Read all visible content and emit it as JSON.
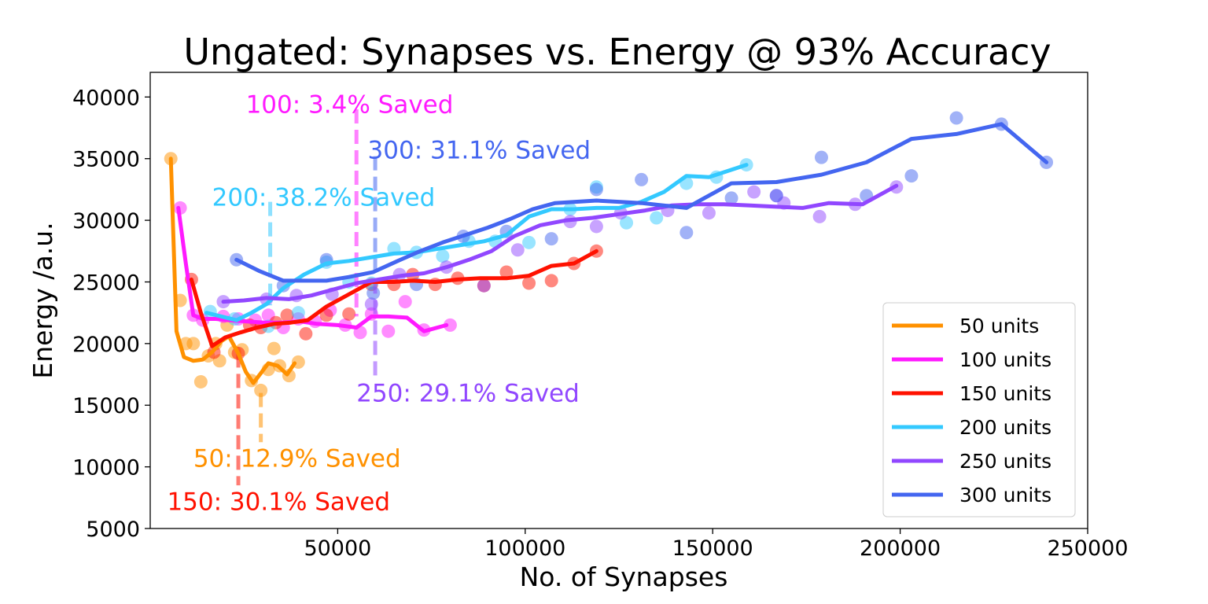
{
  "chart_data": {
    "type": "line",
    "title": "Ungated: Synapses vs. Energy @ 93% Accuracy",
    "xlabel": "No. of Synapses",
    "ylabel": "Energy /a.u.",
    "xlim": [
      0,
      250000
    ],
    "ylim": [
      5000,
      42000
    ],
    "xticks": [
      50000,
      100000,
      150000,
      200000,
      250000
    ],
    "yticks": [
      5000,
      10000,
      15000,
      20000,
      25000,
      30000,
      35000,
      40000
    ],
    "grid": false,
    "legend_position": "bottom-right",
    "series": [
      {
        "name": "50 units",
        "color": "#ff9100",
        "line": [
          [
            5500,
            35000
          ],
          [
            7000,
            21000
          ],
          [
            9000,
            18900
          ],
          [
            11500,
            18600
          ],
          [
            14000,
            18700
          ],
          [
            16500,
            19300
          ],
          [
            19000,
            20200
          ],
          [
            21000,
            20600
          ],
          [
            23500,
            19200
          ],
          [
            25500,
            17700
          ],
          [
            27500,
            16800
          ],
          [
            29500,
            17600
          ],
          [
            31500,
            18400
          ],
          [
            34000,
            18200
          ],
          [
            36500,
            17500
          ],
          [
            38500,
            18400
          ]
        ],
        "points": [
          [
            5500,
            35000
          ],
          [
            8000,
            23500
          ],
          [
            9500,
            20000
          ],
          [
            11500,
            20000
          ],
          [
            13500,
            16900
          ],
          [
            15500,
            19000
          ],
          [
            17500,
            20000
          ],
          [
            18500,
            18600
          ],
          [
            20500,
            21500
          ],
          [
            22500,
            19300
          ],
          [
            24500,
            19500
          ],
          [
            27000,
            17000
          ],
          [
            29500,
            16200
          ],
          [
            31500,
            17900
          ],
          [
            33000,
            19600
          ],
          [
            34500,
            18200
          ],
          [
            37000,
            17400
          ],
          [
            39500,
            18500
          ]
        ]
      },
      {
        "name": "100 units",
        "color": "#ff1aff",
        "line": [
          [
            7500,
            31000
          ],
          [
            9500,
            26500
          ],
          [
            11500,
            22300
          ],
          [
            14000,
            22000
          ],
          [
            17500,
            22000
          ],
          [
            21000,
            21900
          ],
          [
            25500,
            21800
          ],
          [
            30500,
            21700
          ],
          [
            35000,
            21700
          ],
          [
            40000,
            21800
          ],
          [
            44500,
            21600
          ],
          [
            50000,
            21500
          ],
          [
            55000,
            21300
          ],
          [
            59000,
            22200
          ],
          [
            63500,
            22200
          ],
          [
            68500,
            22100
          ],
          [
            73000,
            21000
          ],
          [
            79000,
            21500
          ]
        ],
        "points": [
          [
            8000,
            31000
          ],
          [
            11500,
            22300
          ],
          [
            14000,
            21900
          ],
          [
            19500,
            22200
          ],
          [
            23500,
            22000
          ],
          [
            28000,
            21900
          ],
          [
            31500,
            22300
          ],
          [
            35500,
            21300
          ],
          [
            39500,
            22000
          ],
          [
            44000,
            21800
          ],
          [
            48000,
            22700
          ],
          [
            52000,
            21500
          ],
          [
            56000,
            20900
          ],
          [
            59000,
            22400
          ],
          [
            63500,
            21000
          ],
          [
            68000,
            23400
          ],
          [
            73000,
            21100
          ],
          [
            80000,
            21500
          ]
        ]
      },
      {
        "name": "150 units",
        "color": "#ff1100",
        "line": [
          [
            11000,
            25200
          ],
          [
            13500,
            22500
          ],
          [
            16500,
            19800
          ],
          [
            20000,
            20500
          ],
          [
            24000,
            20900
          ],
          [
            28500,
            21300
          ],
          [
            33000,
            21600
          ],
          [
            37500,
            21700
          ],
          [
            42000,
            21900
          ],
          [
            47000,
            23000
          ],
          [
            53000,
            24000
          ],
          [
            59000,
            25000
          ],
          [
            65000,
            25000
          ],
          [
            70000,
            25100
          ],
          [
            76000,
            25000
          ],
          [
            82000,
            25200
          ],
          [
            88000,
            25300
          ],
          [
            95000,
            25300
          ],
          [
            101000,
            25500
          ],
          [
            107000,
            26300
          ],
          [
            113000,
            26500
          ],
          [
            119000,
            27500
          ]
        ],
        "points": [
          [
            11000,
            25200
          ],
          [
            17000,
            19300
          ],
          [
            23500,
            19200
          ],
          [
            26500,
            21500
          ],
          [
            29500,
            21300
          ],
          [
            33500,
            21700
          ],
          [
            36500,
            22300
          ],
          [
            41500,
            20800
          ],
          [
            47000,
            22300
          ],
          [
            53000,
            22400
          ],
          [
            59000,
            24800
          ],
          [
            65000,
            24800
          ],
          [
            70000,
            25600
          ],
          [
            76000,
            24800
          ],
          [
            82000,
            25300
          ],
          [
            89000,
            24700
          ],
          [
            95000,
            25800
          ],
          [
            101000,
            24900
          ],
          [
            107000,
            25100
          ],
          [
            113000,
            26500
          ],
          [
            119000,
            27500
          ]
        ]
      },
      {
        "name": "200 units",
        "color": "#33c9ff",
        "line": [
          [
            15000,
            22500
          ],
          [
            19000,
            22200
          ],
          [
            23000,
            21900
          ],
          [
            27000,
            22500
          ],
          [
            31000,
            23200
          ],
          [
            35500,
            24500
          ],
          [
            41000,
            25600
          ],
          [
            47000,
            26500
          ],
          [
            53000,
            26700
          ],
          [
            59000,
            27000
          ],
          [
            65000,
            27300
          ],
          [
            71000,
            27400
          ],
          [
            77000,
            27700
          ],
          [
            83000,
            28000
          ],
          [
            89000,
            28300
          ],
          [
            95000,
            28800
          ],
          [
            101000,
            30300
          ],
          [
            107000,
            30900
          ],
          [
            113000,
            30900
          ],
          [
            119000,
            31000
          ],
          [
            125000,
            31000
          ],
          [
            131000,
            31500
          ],
          [
            137000,
            32300
          ],
          [
            143000,
            33600
          ],
          [
            149000,
            33500
          ],
          [
            159000,
            34500
          ]
        ],
        "points": [
          [
            16000,
            22600
          ],
          [
            22500,
            22000
          ],
          [
            31500,
            21400
          ],
          [
            39500,
            22500
          ],
          [
            47000,
            26600
          ],
          [
            53000,
            25000
          ],
          [
            59000,
            24900
          ],
          [
            65000,
            27700
          ],
          [
            71000,
            27400
          ],
          [
            78000,
            27100
          ],
          [
            85000,
            28300
          ],
          [
            92000,
            28300
          ],
          [
            101000,
            28200
          ],
          [
            112000,
            30900
          ],
          [
            119000,
            32700
          ],
          [
            127000,
            29800
          ],
          [
            135000,
            30200
          ],
          [
            143000,
            33000
          ],
          [
            151000,
            33500
          ],
          [
            159000,
            34500
          ]
        ]
      },
      {
        "name": "250 units",
        "color": "#9147ff",
        "line": [
          [
            19500,
            23400
          ],
          [
            25000,
            23500
          ],
          [
            31000,
            23700
          ],
          [
            37000,
            23600
          ],
          [
            43000,
            23900
          ],
          [
            49000,
            24400
          ],
          [
            55000,
            24900
          ],
          [
            61000,
            25200
          ],
          [
            67000,
            25500
          ],
          [
            73000,
            25700
          ],
          [
            79000,
            26200
          ],
          [
            85000,
            26800
          ],
          [
            91000,
            27500
          ],
          [
            97000,
            28700
          ],
          [
            104000,
            29600
          ],
          [
            111000,
            30000
          ],
          [
            118000,
            30200
          ],
          [
            125000,
            30500
          ],
          [
            132000,
            30800
          ],
          [
            139000,
            31200
          ],
          [
            146000,
            31300
          ],
          [
            153000,
            31300
          ],
          [
            160000,
            31200
          ],
          [
            167000,
            31100
          ],
          [
            174000,
            31000
          ],
          [
            181000,
            31400
          ],
          [
            190000,
            31300
          ],
          [
            199000,
            32800
          ]
        ],
        "points": [
          [
            19500,
            23400
          ],
          [
            31000,
            23600
          ],
          [
            39000,
            23900
          ],
          [
            48500,
            24000
          ],
          [
            59000,
            23200
          ],
          [
            66500,
            25600
          ],
          [
            79000,
            26200
          ],
          [
            89000,
            24700
          ],
          [
            98000,
            27600
          ],
          [
            112000,
            29900
          ],
          [
            119000,
            29500
          ],
          [
            125500,
            30600
          ],
          [
            138000,
            30800
          ],
          [
            149000,
            30600
          ],
          [
            161000,
            32300
          ],
          [
            167000,
            32000
          ],
          [
            169000,
            31400
          ],
          [
            178500,
            30300
          ],
          [
            188000,
            31300
          ],
          [
            199000,
            32700
          ]
        ]
      },
      {
        "name": "300 units",
        "color": "#4466f0",
        "line": [
          [
            23000,
            26800
          ],
          [
            29000,
            25900
          ],
          [
            35500,
            25100
          ],
          [
            41500,
            25100
          ],
          [
            47000,
            25100
          ],
          [
            53000,
            25400
          ],
          [
            59500,
            25800
          ],
          [
            66000,
            26700
          ],
          [
            72000,
            27500
          ],
          [
            78000,
            28200
          ],
          [
            84000,
            28800
          ],
          [
            90000,
            29400
          ],
          [
            96000,
            30100
          ],
          [
            102000,
            30900
          ],
          [
            108000,
            31400
          ],
          [
            119000,
            31600
          ],
          [
            131000,
            31400
          ],
          [
            143000,
            31000
          ],
          [
            155000,
            33000
          ],
          [
            167000,
            33100
          ],
          [
            179000,
            33700
          ],
          [
            191000,
            34700
          ],
          [
            203000,
            36600
          ],
          [
            215000,
            37000
          ],
          [
            227000,
            37800
          ],
          [
            239000,
            34700
          ]
        ],
        "points": [
          [
            23000,
            26800
          ],
          [
            35500,
            24700
          ],
          [
            47000,
            26800
          ],
          [
            59500,
            24100
          ],
          [
            71000,
            24800
          ],
          [
            83500,
            28700
          ],
          [
            95000,
            29100
          ],
          [
            107000,
            28500
          ],
          [
            119000,
            32500
          ],
          [
            131000,
            33300
          ],
          [
            143000,
            29000
          ],
          [
            155000,
            31800
          ],
          [
            167000,
            32000
          ],
          [
            179000,
            35100
          ],
          [
            191000,
            32000
          ],
          [
            203000,
            33600
          ],
          [
            215000,
            38300
          ],
          [
            227000,
            37800
          ],
          [
            239000,
            34700
          ]
        ]
      }
    ],
    "annotations": [
      {
        "text": "100: 3.4% Saved",
        "color": "#ff1aff",
        "x": 55000,
        "line_top": 39000,
        "line_bottom": 22200,
        "text_x": 25500,
        "text_y": 38700
      },
      {
        "text": "300: 31.1% Saved",
        "color": "#4466f0",
        "x": 60000,
        "line_top": 35200,
        "line_bottom": 25800,
        "text_x": 58000,
        "text_y": 35000
      },
      {
        "text": "200: 38.2% Saved",
        "color": "#33c9ff",
        "x": 32000,
        "line_top": 31500,
        "line_bottom": 23100,
        "text_x": 16500,
        "text_y": 31200
      },
      {
        "text": "250: 29.1% Saved",
        "color": "#9147ff",
        "x": 60000,
        "line_top": 25200,
        "line_bottom": 17200,
        "text_x": 55000,
        "text_y": 15300
      },
      {
        "text": "50: 12.9% Saved",
        "color": "#ff9100",
        "x": 29500,
        "line_top": 16000,
        "line_bottom": 12000,
        "text_x": 11500,
        "text_y": 10000
      },
      {
        "text": "150: 30.1% Saved",
        "color": "#ff1100",
        "x": 23500,
        "line_top": 19200,
        "line_bottom": 8500,
        "text_x": 4500,
        "text_y": 6500
      }
    ]
  }
}
